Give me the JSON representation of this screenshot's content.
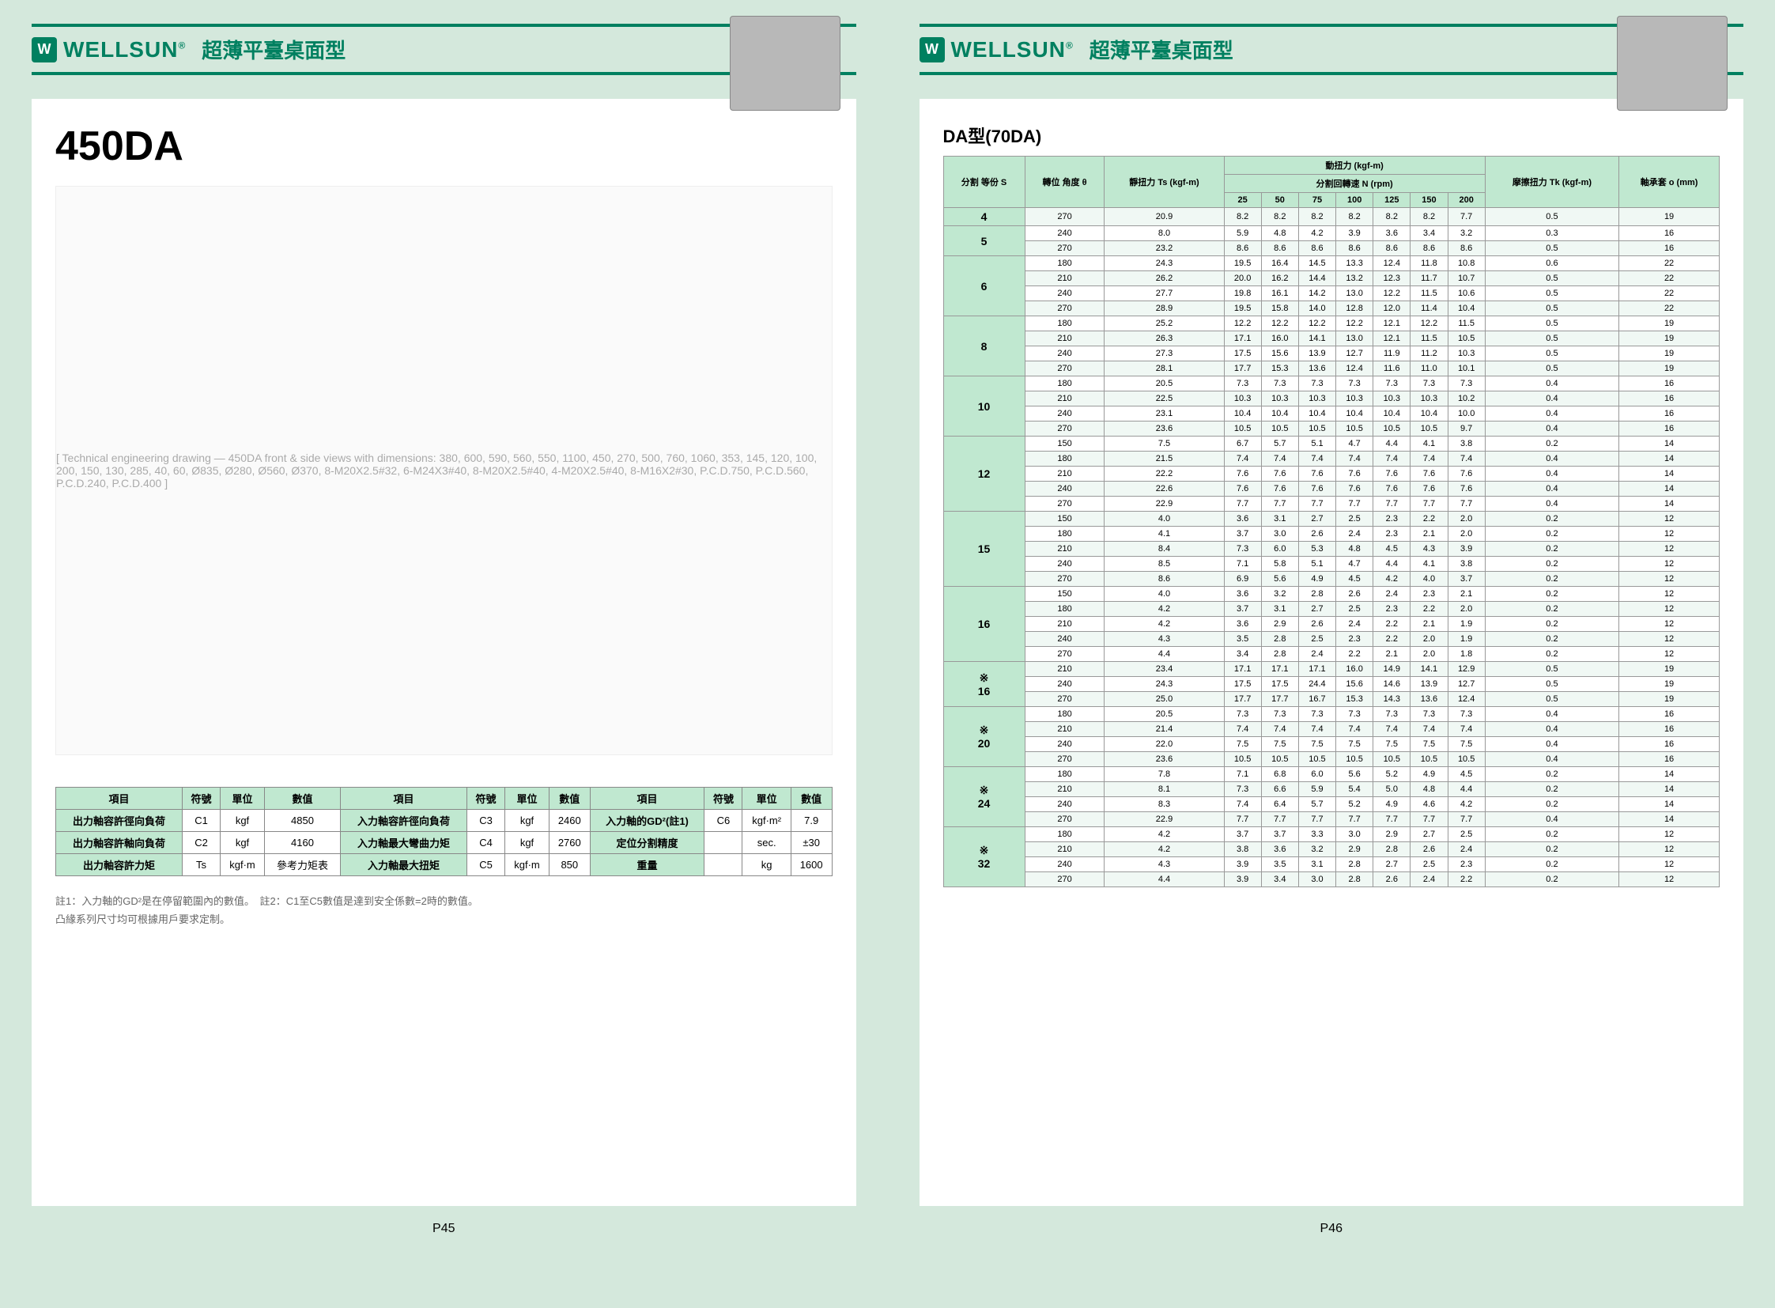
{
  "brand": "WELLSUN",
  "brand_r": "®",
  "header_title": "超薄平臺桌面型",
  "left_page": {
    "model": "450DA",
    "page_num": "P45",
    "drawing_note": "[ Technical engineering drawing — 450DA front & side views with dimensions: 380, 600, 590, 560, 550, 1100, 450, 270, 500, 760, 1060, 353, 145, 120, 100, 200, 150, 130, 285, 40, 60, Ø835, Ø280, Ø560, Ø370, 8-M20X2.5#32, 6-M24X3#40, 8-M20X2.5#40, 4-M20X2.5#40, 8-M16X2#30, P.C.D.750, P.C.D.560, P.C.D.240, P.C.D.400 ]",
    "spec_headers": [
      "項目",
      "符號",
      "單位",
      "數值",
      "項目",
      "符號",
      "單位",
      "數值",
      "項目",
      "符號",
      "單位",
      "數值"
    ],
    "spec_rows": [
      [
        "出力軸容許徑向負荷",
        "C1",
        "kgf",
        "4850",
        "入力軸容許徑向負荷",
        "C3",
        "kgf",
        "2460",
        "入力軸的GD²(註1)",
        "C6",
        "kgf·m²",
        "7.9"
      ],
      [
        "出力軸容許軸向負荷",
        "C2",
        "kgf",
        "4160",
        "入力軸最大彎曲力矩",
        "C4",
        "kgf",
        "2760",
        "定位分割精度",
        "",
        "sec.",
        "±30"
      ],
      [
        "出力軸容許力矩",
        "Ts",
        "kgf·m",
        "參考力矩表",
        "入力軸最大扭矩",
        "C5",
        "kgf·m",
        "850",
        "重量",
        "",
        "kg",
        "1600"
      ]
    ],
    "note1": "註1：入力軸的GD²是在停留範圍內的數值。　註2：C1至C5數值是達到安全係數=2時的數值。",
    "note2": "凸緣系列尺寸均可根據用戶要求定制。"
  },
  "right_page": {
    "page_num": "P46",
    "table_title": "DA型(70DA)",
    "header": {
      "col_s": "分割\n等份\nS",
      "col_angle": "轉位\n角度\nθ",
      "col_static": "靜扭力\nTs\n(kgf-m)",
      "dyn_title": "動扭力 (kgf-m)",
      "rpm_title": "分割回轉速 N (rpm)",
      "rpm_cols": [
        "25",
        "50",
        "75",
        "100",
        "125",
        "150",
        "200"
      ],
      "col_friction": "摩擦扭力\nTk\n(kgf-m)",
      "col_bearing": "軸承套\no\n(mm)"
    },
    "rows": [
      {
        "s": "4",
        "a": "270",
        "ts": "20.9",
        "d": [
          "8.2",
          "8.2",
          "8.2",
          "8.2",
          "8.2",
          "8.2",
          "7.7"
        ],
        "tk": "0.5",
        "o": "19"
      },
      {
        "s": "5",
        "a": "240",
        "ts": "8.0",
        "d": [
          "5.9",
          "4.8",
          "4.2",
          "3.9",
          "3.6",
          "3.4",
          "3.2"
        ],
        "tk": "0.3",
        "o": "16"
      },
      {
        "s": "",
        "a": "270",
        "ts": "23.2",
        "d": [
          "8.6",
          "8.6",
          "8.6",
          "8.6",
          "8.6",
          "8.6",
          "8.6"
        ],
        "tk": "0.5",
        "o": "16"
      },
      {
        "s": "6",
        "a": "180",
        "ts": "24.3",
        "d": [
          "19.5",
          "16.4",
          "14.5",
          "13.3",
          "12.4",
          "11.8",
          "10.8"
        ],
        "tk": "0.6",
        "o": "22"
      },
      {
        "s": "",
        "a": "210",
        "ts": "26.2",
        "d": [
          "20.0",
          "16.2",
          "14.4",
          "13.2",
          "12.3",
          "11.7",
          "10.7"
        ],
        "tk": "0.5",
        "o": "22"
      },
      {
        "s": "",
        "a": "240",
        "ts": "27.7",
        "d": [
          "19.8",
          "16.1",
          "14.2",
          "13.0",
          "12.2",
          "11.5",
          "10.6"
        ],
        "tk": "0.5",
        "o": "22"
      },
      {
        "s": "",
        "a": "270",
        "ts": "28.9",
        "d": [
          "19.5",
          "15.8",
          "14.0",
          "12.8",
          "12.0",
          "11.4",
          "10.4"
        ],
        "tk": "0.5",
        "o": "22"
      },
      {
        "s": "8",
        "a": "180",
        "ts": "25.2",
        "d": [
          "12.2",
          "12.2",
          "12.2",
          "12.2",
          "12.1",
          "12.2",
          "11.5"
        ],
        "tk": "0.5",
        "o": "19"
      },
      {
        "s": "",
        "a": "210",
        "ts": "26.3",
        "d": [
          "17.1",
          "16.0",
          "14.1",
          "13.0",
          "12.1",
          "11.5",
          "10.5"
        ],
        "tk": "0.5",
        "o": "19"
      },
      {
        "s": "",
        "a": "240",
        "ts": "27.3",
        "d": [
          "17.5",
          "15.6",
          "13.9",
          "12.7",
          "11.9",
          "11.2",
          "10.3"
        ],
        "tk": "0.5",
        "o": "19"
      },
      {
        "s": "",
        "a": "270",
        "ts": "28.1",
        "d": [
          "17.7",
          "15.3",
          "13.6",
          "12.4",
          "11.6",
          "11.0",
          "10.1"
        ],
        "tk": "0.5",
        "o": "19"
      },
      {
        "s": "10",
        "a": "180",
        "ts": "20.5",
        "d": [
          "7.3",
          "7.3",
          "7.3",
          "7.3",
          "7.3",
          "7.3",
          "7.3"
        ],
        "tk": "0.4",
        "o": "16"
      },
      {
        "s": "",
        "a": "210",
        "ts": "22.5",
        "d": [
          "10.3",
          "10.3",
          "10.3",
          "10.3",
          "10.3",
          "10.3",
          "10.2"
        ],
        "tk": "0.4",
        "o": "16"
      },
      {
        "s": "",
        "a": "240",
        "ts": "23.1",
        "d": [
          "10.4",
          "10.4",
          "10.4",
          "10.4",
          "10.4",
          "10.4",
          "10.0"
        ],
        "tk": "0.4",
        "o": "16"
      },
      {
        "s": "",
        "a": "270",
        "ts": "23.6",
        "d": [
          "10.5",
          "10.5",
          "10.5",
          "10.5",
          "10.5",
          "10.5",
          "9.7"
        ],
        "tk": "0.4",
        "o": "16"
      },
      {
        "s": "12",
        "a": "150",
        "ts": "7.5",
        "d": [
          "6.7",
          "5.7",
          "5.1",
          "4.7",
          "4.4",
          "4.1",
          "3.8"
        ],
        "tk": "0.2",
        "o": "14"
      },
      {
        "s": "",
        "a": "180",
        "ts": "21.5",
        "d": [
          "7.4",
          "7.4",
          "7.4",
          "7.4",
          "7.4",
          "7.4",
          "7.4"
        ],
        "tk": "0.4",
        "o": "14"
      },
      {
        "s": "",
        "a": "210",
        "ts": "22.2",
        "d": [
          "7.6",
          "7.6",
          "7.6",
          "7.6",
          "7.6",
          "7.6",
          "7.6"
        ],
        "tk": "0.4",
        "o": "14"
      },
      {
        "s": "",
        "a": "240",
        "ts": "22.6",
        "d": [
          "7.6",
          "7.6",
          "7.6",
          "7.6",
          "7.6",
          "7.6",
          "7.6"
        ],
        "tk": "0.4",
        "o": "14"
      },
      {
        "s": "",
        "a": "270",
        "ts": "22.9",
        "d": [
          "7.7",
          "7.7",
          "7.7",
          "7.7",
          "7.7",
          "7.7",
          "7.7"
        ],
        "tk": "0.4",
        "o": "14"
      },
      {
        "s": "15",
        "a": "150",
        "ts": "4.0",
        "d": [
          "3.6",
          "3.1",
          "2.7",
          "2.5",
          "2.3",
          "2.2",
          "2.0"
        ],
        "tk": "0.2",
        "o": "12"
      },
      {
        "s": "",
        "a": "180",
        "ts": "4.1",
        "d": [
          "3.7",
          "3.0",
          "2.6",
          "2.4",
          "2.3",
          "2.1",
          "2.0"
        ],
        "tk": "0.2",
        "o": "12"
      },
      {
        "s": "",
        "a": "210",
        "ts": "8.4",
        "d": [
          "7.3",
          "6.0",
          "5.3",
          "4.8",
          "4.5",
          "4.3",
          "3.9"
        ],
        "tk": "0.2",
        "o": "12"
      },
      {
        "s": "",
        "a": "240",
        "ts": "8.5",
        "d": [
          "7.1",
          "5.8",
          "5.1",
          "4.7",
          "4.4",
          "4.1",
          "3.8"
        ],
        "tk": "0.2",
        "o": "12"
      },
      {
        "s": "",
        "a": "270",
        "ts": "8.6",
        "d": [
          "6.9",
          "5.6",
          "4.9",
          "4.5",
          "4.2",
          "4.0",
          "3.7"
        ],
        "tk": "0.2",
        "o": "12"
      },
      {
        "s": "16",
        "a": "150",
        "ts": "4.0",
        "d": [
          "3.6",
          "3.2",
          "2.8",
          "2.6",
          "2.4",
          "2.3",
          "2.1"
        ],
        "tk": "0.2",
        "o": "12"
      },
      {
        "s": "",
        "a": "180",
        "ts": "4.2",
        "d": [
          "3.7",
          "3.1",
          "2.7",
          "2.5",
          "2.3",
          "2.2",
          "2.0"
        ],
        "tk": "0.2",
        "o": "12"
      },
      {
        "s": "",
        "a": "210",
        "ts": "4.2",
        "d": [
          "3.6",
          "2.9",
          "2.6",
          "2.4",
          "2.2",
          "2.1",
          "1.9"
        ],
        "tk": "0.2",
        "o": "12"
      },
      {
        "s": "",
        "a": "240",
        "ts": "4.3",
        "d": [
          "3.5",
          "2.8",
          "2.5",
          "2.3",
          "2.2",
          "2.0",
          "1.9"
        ],
        "tk": "0.2",
        "o": "12"
      },
      {
        "s": "",
        "a": "270",
        "ts": "4.4",
        "d": [
          "3.4",
          "2.8",
          "2.4",
          "2.2",
          "2.1",
          "2.0",
          "1.8"
        ],
        "tk": "0.2",
        "o": "12"
      },
      {
        "s": "※\n16",
        "a": "210",
        "ts": "23.4",
        "d": [
          "17.1",
          "17.1",
          "17.1",
          "16.0",
          "14.9",
          "14.1",
          "12.9"
        ],
        "tk": "0.5",
        "o": "19"
      },
      {
        "s": "",
        "a": "240",
        "ts": "24.3",
        "d": [
          "17.5",
          "17.5",
          "24.4",
          "15.6",
          "14.6",
          "13.9",
          "12.7"
        ],
        "tk": "0.5",
        "o": "19"
      },
      {
        "s": "",
        "a": "270",
        "ts": "25.0",
        "d": [
          "17.7",
          "17.7",
          "16.7",
          "15.3",
          "14.3",
          "13.6",
          "12.4"
        ],
        "tk": "0.5",
        "o": "19"
      },
      {
        "s": "※\n20",
        "a": "180",
        "ts": "20.5",
        "d": [
          "7.3",
          "7.3",
          "7.3",
          "7.3",
          "7.3",
          "7.3",
          "7.3"
        ],
        "tk": "0.4",
        "o": "16"
      },
      {
        "s": "",
        "a": "210",
        "ts": "21.4",
        "d": [
          "7.4",
          "7.4",
          "7.4",
          "7.4",
          "7.4",
          "7.4",
          "7.4"
        ],
        "tk": "0.4",
        "o": "16"
      },
      {
        "s": "",
        "a": "240",
        "ts": "22.0",
        "d": [
          "7.5",
          "7.5",
          "7.5",
          "7.5",
          "7.5",
          "7.5",
          "7.5"
        ],
        "tk": "0.4",
        "o": "16"
      },
      {
        "s": "",
        "a": "270",
        "ts": "23.6",
        "d": [
          "10.5",
          "10.5",
          "10.5",
          "10.5",
          "10.5",
          "10.5",
          "10.5"
        ],
        "tk": "0.4",
        "o": "16"
      },
      {
        "s": "※\n24",
        "a": "180",
        "ts": "7.8",
        "d": [
          "7.1",
          "6.8",
          "6.0",
          "5.6",
          "5.2",
          "4.9",
          "4.5"
        ],
        "tk": "0.2",
        "o": "14"
      },
      {
        "s": "",
        "a": "210",
        "ts": "8.1",
        "d": [
          "7.3",
          "6.6",
          "5.9",
          "5.4",
          "5.0",
          "4.8",
          "4.4"
        ],
        "tk": "0.2",
        "o": "14"
      },
      {
        "s": "",
        "a": "240",
        "ts": "8.3",
        "d": [
          "7.4",
          "6.4",
          "5.7",
          "5.2",
          "4.9",
          "4.6",
          "4.2"
        ],
        "tk": "0.2",
        "o": "14"
      },
      {
        "s": "",
        "a": "270",
        "ts": "22.9",
        "d": [
          "7.7",
          "7.7",
          "7.7",
          "7.7",
          "7.7",
          "7.7",
          "7.7"
        ],
        "tk": "0.4",
        "o": "14"
      },
      {
        "s": "※\n32",
        "a": "180",
        "ts": "4.2",
        "d": [
          "3.7",
          "3.7",
          "3.3",
          "3.0",
          "2.9",
          "2.7",
          "2.5"
        ],
        "tk": "0.2",
        "o": "12"
      },
      {
        "s": "",
        "a": "210",
        "ts": "4.2",
        "d": [
          "3.8",
          "3.6",
          "3.2",
          "2.9",
          "2.8",
          "2.6",
          "2.4"
        ],
        "tk": "0.2",
        "o": "12"
      },
      {
        "s": "",
        "a": "240",
        "ts": "4.3",
        "d": [
          "3.9",
          "3.5",
          "3.1",
          "2.8",
          "2.7",
          "2.5",
          "2.3"
        ],
        "tk": "0.2",
        "o": "12"
      },
      {
        "s": "",
        "a": "270",
        "ts": "4.4",
        "d": [
          "3.9",
          "3.4",
          "3.0",
          "2.8",
          "2.6",
          "2.4",
          "2.2"
        ],
        "tk": "0.2",
        "o": "12"
      }
    ]
  }
}
